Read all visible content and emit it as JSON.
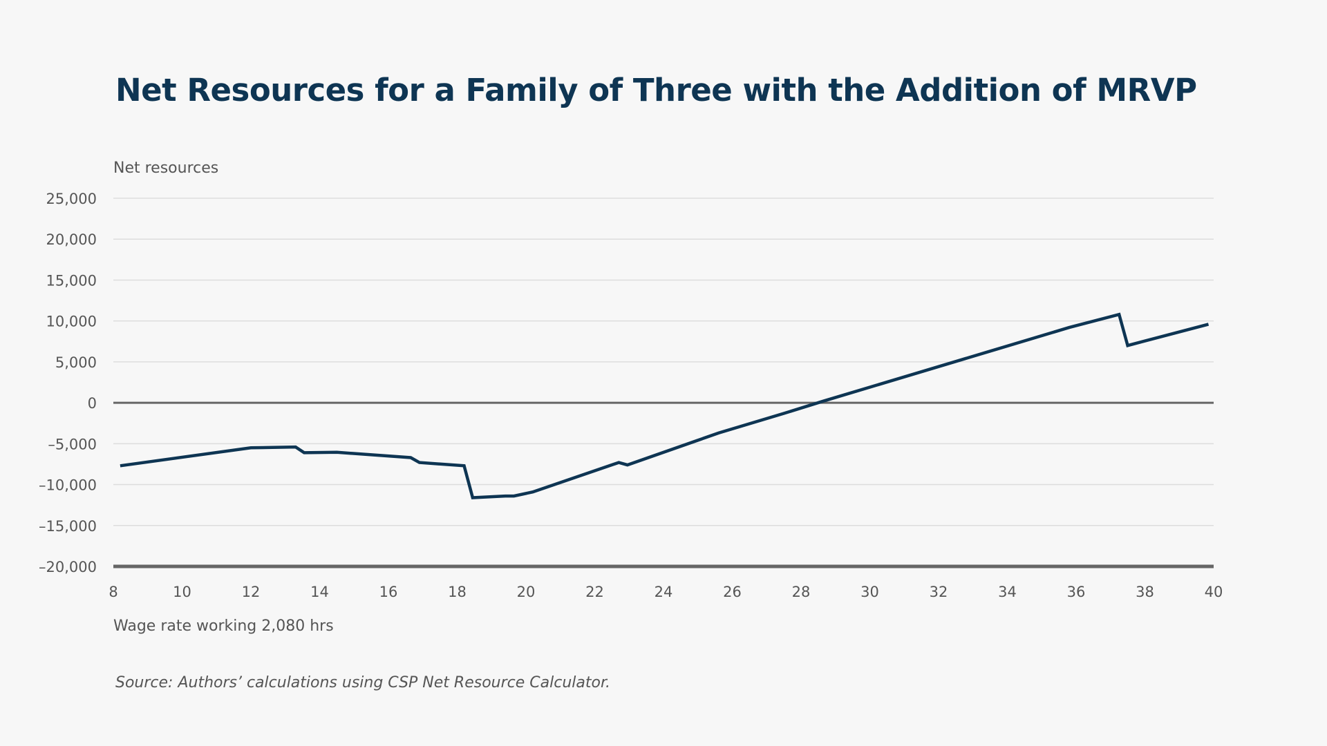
{
  "title": "Net Resources for a Family of Three with the Addition of MRVP",
  "source": "Source: Authors’ calculations using CSP Net Resource Calculator.",
  "colors": {
    "background": "#f7f7f7",
    "title": "#0e3553",
    "line": "#0e3553",
    "grid": "#dddddd",
    "zero_line": "#666666",
    "axis_text": "#555555"
  },
  "chart_data": {
    "type": "line",
    "title": "Net Resources for a Family of Three with the Addition of MRVP",
    "ylabel": "Net resources",
    "xlabel": "Wage rate working 2,080 hrs",
    "xlim": [
      8,
      40
    ],
    "ylim": [
      -20000,
      25000
    ],
    "x_ticks": [
      8,
      10,
      12,
      14,
      16,
      18,
      20,
      22,
      24,
      26,
      28,
      30,
      32,
      34,
      36,
      38,
      40
    ],
    "x_tick_labels": [
      "8",
      "10",
      "12",
      "14",
      "16",
      "18",
      "20",
      "22",
      "24",
      "26",
      "28",
      "30",
      "32",
      "34",
      "36",
      "38",
      "40"
    ],
    "y_ticks": [
      25000,
      20000,
      15000,
      10000,
      5000,
      0,
      -5000,
      -10000,
      -15000,
      -20000
    ],
    "y_tick_labels": [
      "25,000",
      "20,000",
      "15,000",
      "10,000",
      "5,000",
      "0",
      "–5,000",
      "–10,000",
      "–15,000",
      "–20,000"
    ],
    "grid": true,
    "legend": "none",
    "series": [
      {
        "color": "#0e3553",
        "points": [
          [
            8.2,
            -7700
          ],
          [
            12.0,
            -5500
          ],
          [
            13.3,
            -5400
          ],
          [
            13.55,
            -6100
          ],
          [
            14.5,
            -6050
          ],
          [
            16.65,
            -6700
          ],
          [
            16.9,
            -7300
          ],
          [
            18.2,
            -7700
          ],
          [
            18.45,
            -11600
          ],
          [
            19.4,
            -11400
          ],
          [
            19.65,
            -11400
          ],
          [
            20.2,
            -10900
          ],
          [
            22.7,
            -7300
          ],
          [
            22.95,
            -7600
          ],
          [
            25.6,
            -3700
          ],
          [
            27.5,
            -1300
          ],
          [
            28.65,
            200
          ],
          [
            35.8,
            9200
          ],
          [
            37.25,
            10800
          ],
          [
            37.5,
            7000
          ],
          [
            39.85,
            9600
          ]
        ]
      }
    ]
  }
}
